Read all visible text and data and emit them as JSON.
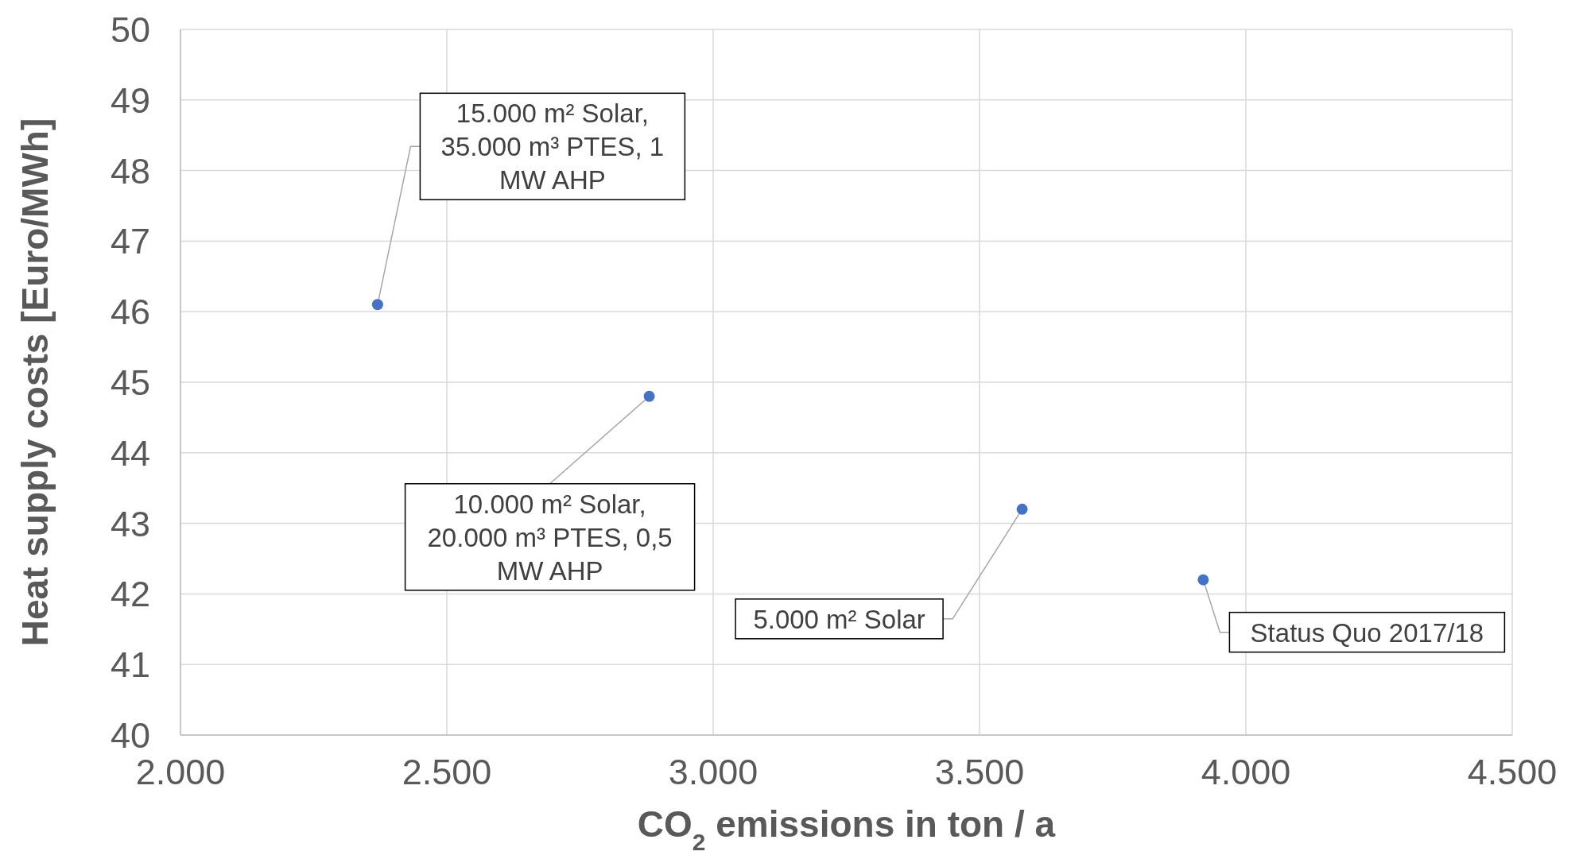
{
  "chart_data": {
    "type": "scatter",
    "xlabel": "CO$_{2}$ emissions in ton / a",
    "ylabel": "Heat supply costs [Euro/MWh]",
    "x": [
      2370,
      2880,
      3580,
      3920
    ],
    "series": [
      {
        "color": "#4472c4",
        "values": [
          46.1,
          44.8,
          43.2,
          42.2
        ]
      }
    ],
    "xlim": [
      2000,
      4500
    ],
    "xticks": [
      {
        "value": 2000,
        "label": "2.000"
      },
      {
        "value": 2500,
        "label": "2.500"
      },
      {
        "value": 3000,
        "label": "3.000"
      },
      {
        "value": 3500,
        "label": "3.500"
      },
      {
        "value": 4000,
        "label": "4.000"
      },
      {
        "value": 4500,
        "label": "4.500"
      }
    ],
    "ylim": [
      40,
      50
    ],
    "yticks": [
      40,
      41,
      42,
      43,
      44,
      45,
      46,
      47,
      48,
      49,
      50
    ],
    "grid": true,
    "marker": "circle",
    "annotations": [
      {
        "text": "15.000 m² Solar, 35.000 m³ PTES, 1 MW AHP",
        "x": 2370,
        "y": 46.1
      },
      {
        "text": "10.000 m² Solar, 20.000 m³ PTES, 0,5 MW AHP",
        "x": 2880,
        "y": 44.8
      },
      {
        "text": "5.000 m² Solar",
        "x": 3580,
        "y": 43.2
      },
      {
        "text": "Status Quo 2017/18",
        "x": 3920,
        "y": 42.2
      }
    ]
  }
}
